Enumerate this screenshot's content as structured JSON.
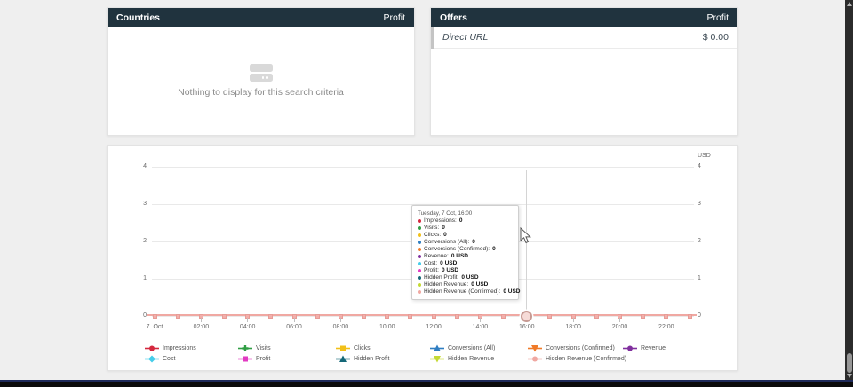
{
  "panels": {
    "countries": {
      "title": "Countries",
      "header_metric": "Profit",
      "empty_message": "Nothing to display for this search criteria"
    },
    "offers": {
      "title": "Offers",
      "header_metric": "Profit",
      "rows": [
        {
          "label": "Direct URL",
          "value": "$ 0.00"
        }
      ]
    }
  },
  "chart_data": {
    "type": "line",
    "unit_label": "USD",
    "ylim": [
      0,
      4
    ],
    "y_ticks": [
      0,
      1,
      2,
      3,
      4
    ],
    "x_tick_labels": [
      "7. Oct",
      "02:00",
      "04:00",
      "06:00",
      "08:00",
      "10:00",
      "12:00",
      "14:00",
      "16:00",
      "18:00",
      "20:00",
      "22:00"
    ],
    "points_per_day": 24,
    "hovered_index": 16,
    "grid": true,
    "legend_position": "bottom",
    "series": [
      {
        "name": "Impressions",
        "color": "#d4283e",
        "marker": "circle",
        "values": [
          0,
          0,
          0,
          0,
          0,
          0,
          0,
          0,
          0,
          0,
          0,
          0,
          0,
          0,
          0,
          0,
          0,
          0,
          0,
          0,
          0,
          0,
          0,
          0
        ]
      },
      {
        "name": "Visits",
        "color": "#2f9e44",
        "marker": "plus",
        "values": [
          0,
          0,
          0,
          0,
          0,
          0,
          0,
          0,
          0,
          0,
          0,
          0,
          0,
          0,
          0,
          0,
          0,
          0,
          0,
          0,
          0,
          0,
          0,
          0
        ]
      },
      {
        "name": "Clicks",
        "color": "#f2c018",
        "marker": "square",
        "values": [
          0,
          0,
          0,
          0,
          0,
          0,
          0,
          0,
          0,
          0,
          0,
          0,
          0,
          0,
          0,
          0,
          0,
          0,
          0,
          0,
          0,
          0,
          0,
          0
        ]
      },
      {
        "name": "Conversions (All)",
        "color": "#2f7ec2",
        "marker": "triangle-up",
        "values": [
          0,
          0,
          0,
          0,
          0,
          0,
          0,
          0,
          0,
          0,
          0,
          0,
          0,
          0,
          0,
          0,
          0,
          0,
          0,
          0,
          0,
          0,
          0,
          0
        ]
      },
      {
        "name": "Conversions (Confirmed)",
        "color": "#f07a28",
        "marker": "triangle-down",
        "values": [
          0,
          0,
          0,
          0,
          0,
          0,
          0,
          0,
          0,
          0,
          0,
          0,
          0,
          0,
          0,
          0,
          0,
          0,
          0,
          0,
          0,
          0,
          0,
          0
        ]
      },
      {
        "name": "Revenue",
        "color": "#802f9e",
        "marker": "circle",
        "values": [
          0,
          0,
          0,
          0,
          0,
          0,
          0,
          0,
          0,
          0,
          0,
          0,
          0,
          0,
          0,
          0,
          0,
          0,
          0,
          0,
          0,
          0,
          0,
          0
        ]
      },
      {
        "name": "Cost",
        "color": "#45cdea",
        "marker": "diamond",
        "values": [
          0,
          0,
          0,
          0,
          0,
          0,
          0,
          0,
          0,
          0,
          0,
          0,
          0,
          0,
          0,
          0,
          0,
          0,
          0,
          0,
          0,
          0,
          0,
          0
        ]
      },
      {
        "name": "Profit",
        "color": "#e23ac2",
        "marker": "square",
        "values": [
          0,
          0,
          0,
          0,
          0,
          0,
          0,
          0,
          0,
          0,
          0,
          0,
          0,
          0,
          0,
          0,
          0,
          0,
          0,
          0,
          0,
          0,
          0,
          0
        ]
      },
      {
        "name": "Hidden Profit",
        "color": "#156878",
        "marker": "triangle-up",
        "values": [
          0,
          0,
          0,
          0,
          0,
          0,
          0,
          0,
          0,
          0,
          0,
          0,
          0,
          0,
          0,
          0,
          0,
          0,
          0,
          0,
          0,
          0,
          0,
          0
        ]
      },
      {
        "name": "Hidden Revenue",
        "color": "#c4d932",
        "marker": "triangle-down",
        "values": [
          0,
          0,
          0,
          0,
          0,
          0,
          0,
          0,
          0,
          0,
          0,
          0,
          0,
          0,
          0,
          0,
          0,
          0,
          0,
          0,
          0,
          0,
          0,
          0
        ]
      },
      {
        "name": "Hidden Revenue (Confirmed)",
        "color": "#f0a8a2",
        "marker": "circle",
        "values": [
          0,
          0,
          0,
          0,
          0,
          0,
          0,
          0,
          0,
          0,
          0,
          0,
          0,
          0,
          0,
          0,
          0,
          0,
          0,
          0,
          0,
          0,
          0,
          0
        ]
      }
    ]
  },
  "tooltip": {
    "title": "Tuesday, 7 Oct, 16:00",
    "items": [
      {
        "label": "Impressions",
        "value": "0",
        "color": "#d4283e"
      },
      {
        "label": "Visits",
        "value": "0",
        "color": "#2f9e44"
      },
      {
        "label": "Clicks",
        "value": "0",
        "color": "#f2c018"
      },
      {
        "label": "Conversions (All)",
        "value": "0",
        "color": "#2f7ec2"
      },
      {
        "label": "Conversions (Confirmed)",
        "value": "0",
        "color": "#f07a28"
      },
      {
        "label": "Revenue",
        "value": "0 USD",
        "color": "#802f9e"
      },
      {
        "label": "Cost",
        "value": "0 USD",
        "color": "#45cdea"
      },
      {
        "label": "Profit",
        "value": "0 USD",
        "color": "#e23ac2"
      },
      {
        "label": "Hidden Profit",
        "value": "0 USD",
        "color": "#156878"
      },
      {
        "label": "Hidden Revenue",
        "value": "0 USD",
        "color": "#c4d932"
      },
      {
        "label": "Hidden Revenue (Confirmed)",
        "value": "0 USD",
        "color": "#f0a8a2"
      }
    ]
  },
  "colors": {
    "panel_header_bg": "#20333e",
    "page_bg": "#efefef",
    "visible_line": "#f0a8a2"
  }
}
